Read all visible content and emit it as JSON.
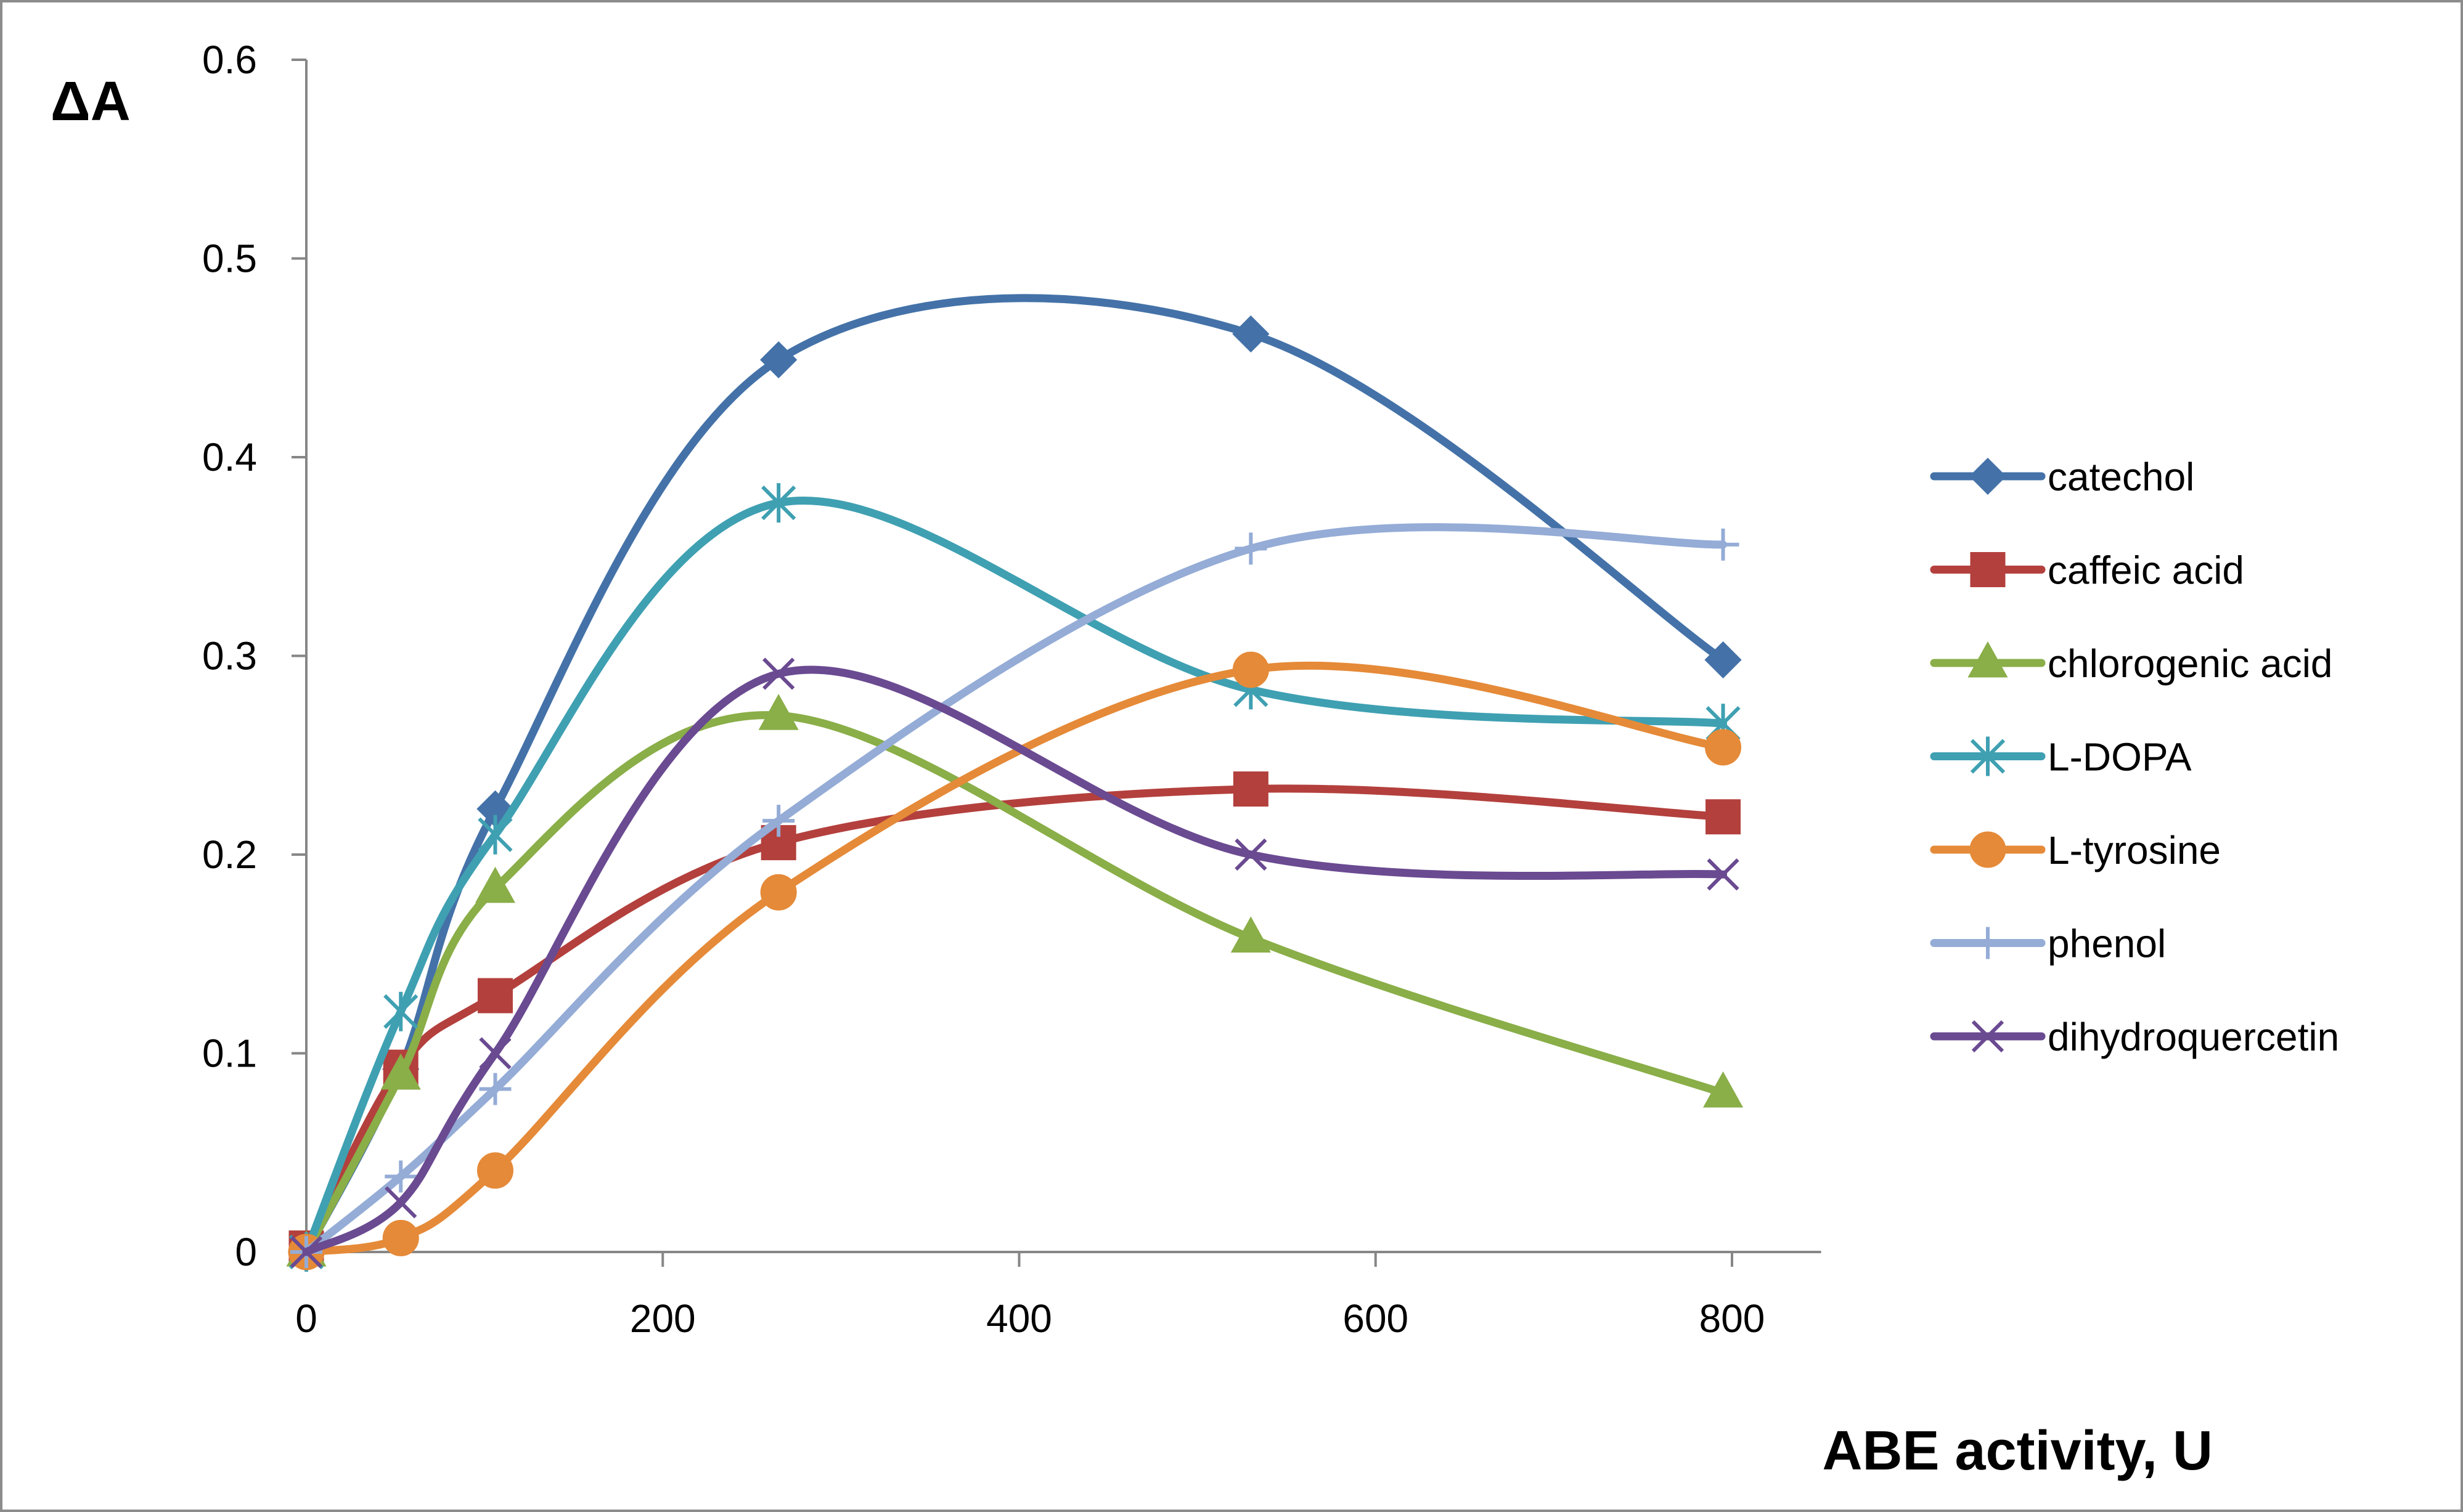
{
  "chart_data": {
    "type": "line",
    "title": "",
    "xlabel": "ABE activity, U",
    "ylabel": "ΔA",
    "xlim": [
      0,
      850
    ],
    "ylim": [
      0,
      0.6
    ],
    "xticks": [
      0,
      200,
      400,
      600,
      800
    ],
    "xtick_labels": [
      "0",
      "200",
      "400",
      "600",
      "800"
    ],
    "yticks": [
      0,
      0.1,
      0.2,
      0.3,
      0.4,
      0.5,
      0.6
    ],
    "ytick_labels": [
      "0",
      "0.1",
      "0.2",
      "0.3",
      "0.4",
      "0.5",
      "0.6"
    ],
    "grid": false,
    "legend_position": "right",
    "smooth": true,
    "series": [
      {
        "name": "catechol",
        "color": "#4472a8",
        "marker": "diamond",
        "x": [
          0,
          53,
          106,
          265,
          530,
          795
        ],
        "y": [
          0,
          0.092,
          0.223,
          0.449,
          0.462,
          0.298
        ]
      },
      {
        "name": "caffeic acid",
        "color": "#b3403d",
        "marker": "square",
        "x": [
          0,
          53,
          106,
          265,
          530,
          795
        ],
        "y": [
          0.002,
          0.093,
          0.129,
          0.206,
          0.233,
          0.219
        ]
      },
      {
        "name": "chlorogenic acid",
        "color": "#8aae48",
        "marker": "triangle",
        "x": [
          0,
          53,
          106,
          265,
          530,
          795
        ],
        "y": [
          0,
          0.089,
          0.183,
          0.27,
          0.158,
          0.08
        ]
      },
      {
        "name": "L-DOPA",
        "color": "#3fa0b2",
        "marker": "asterisk",
        "x": [
          0,
          53,
          106,
          265,
          530,
          795
        ],
        "y": [
          0,
          0.121,
          0.21,
          0.377,
          0.283,
          0.266
        ]
      },
      {
        "name": "L-tyrosine",
        "color": "#e58a38",
        "marker": "circle",
        "x": [
          0,
          53,
          106,
          265,
          530,
          795
        ],
        "y": [
          0,
          0.007,
          0.041,
          0.181,
          0.293,
          0.254
        ]
      },
      {
        "name": "phenol",
        "color": "#94acd6",
        "marker": "plus",
        "x": [
          0,
          53,
          106,
          265,
          530,
          795
        ],
        "y": [
          0,
          0.038,
          0.082,
          0.217,
          0.354,
          0.356
        ]
      },
      {
        "name": "dihydroquercetin",
        "color": "#6a4a91",
        "marker": "x",
        "x": [
          0,
          53,
          106,
          265,
          530,
          795
        ],
        "y": [
          0,
          0.025,
          0.1,
          0.291,
          0.2,
          0.19
        ]
      }
    ]
  }
}
